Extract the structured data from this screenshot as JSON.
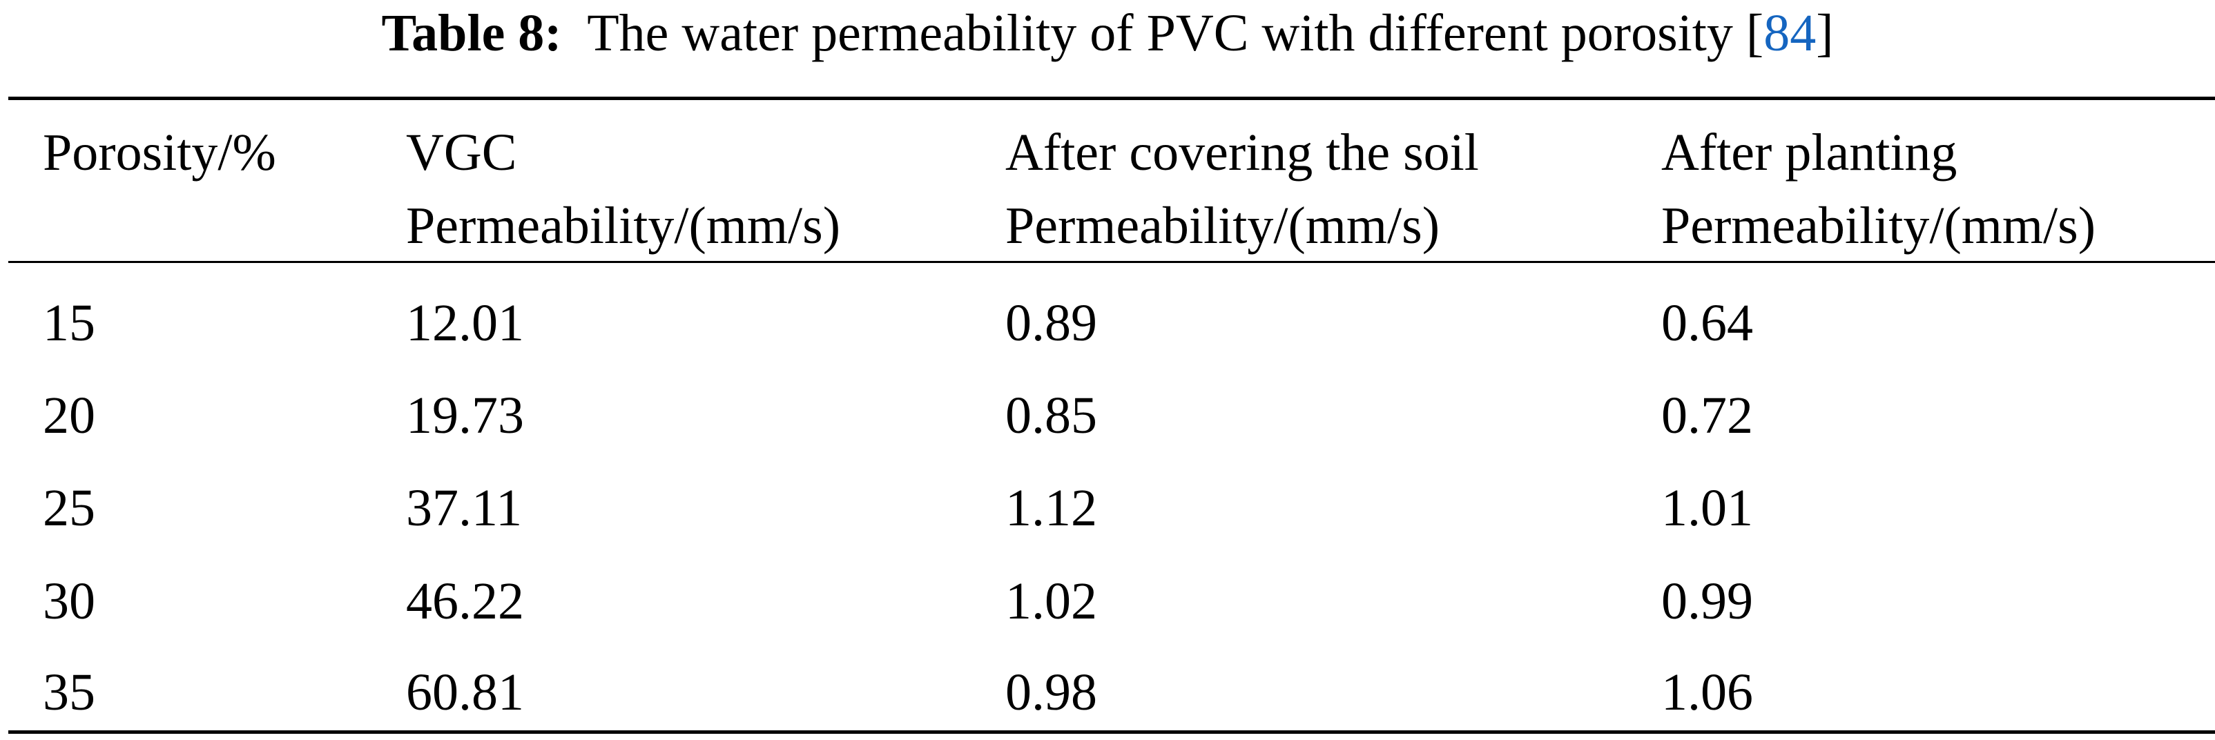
{
  "caption": {
    "label": "Table 8:",
    "text": "The water permeability of PVC with different porosity [",
    "ref": "84",
    "close": "]"
  },
  "table": {
    "headers": [
      {
        "line1": "Porosity/%",
        "line2": ""
      },
      {
        "line1": "VGC",
        "line2": "Permeability/(mm/s)"
      },
      {
        "line1": "After covering the soil",
        "line2": "Permeability/(mm/s)"
      },
      {
        "line1": "After planting",
        "line2": "Permeability/(mm/s)"
      }
    ],
    "rows": [
      [
        "15",
        "12.01",
        "0.89",
        "0.64"
      ],
      [
        "20",
        "19.73",
        "0.85",
        "0.72"
      ],
      [
        "25",
        "37.11",
        "1.12",
        "1.01"
      ],
      [
        "30",
        "46.22",
        "1.02",
        "0.99"
      ],
      [
        "35",
        "60.81",
        "0.98",
        "1.06"
      ]
    ]
  }
}
